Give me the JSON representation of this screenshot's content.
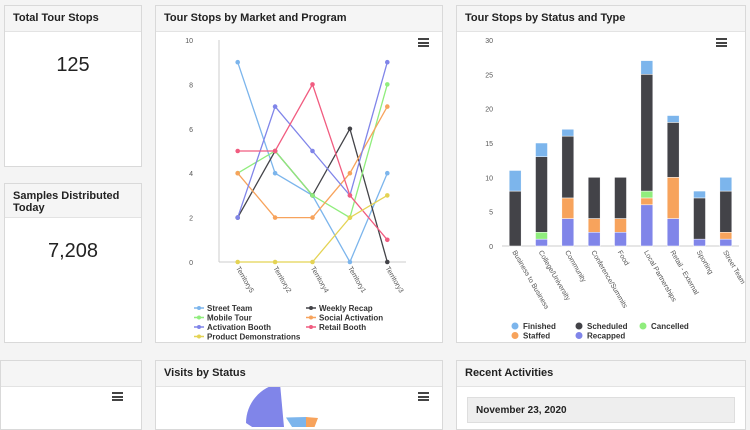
{
  "kpis": {
    "total_tour_stops": {
      "title": "Total Tour Stops",
      "value": "125"
    },
    "samples_distributed": {
      "title": "Samples Distributed Today",
      "value": "7,208"
    }
  },
  "cards": {
    "market_program_title": "Tour Stops by Market and Program",
    "status_type_title": "Tour Stops by Status and Type",
    "visits_status_title": "Visits by Status",
    "recent_activities_title": "Recent Activities"
  },
  "recent_activities": {
    "date_header": "November 23, 2020"
  },
  "icons": {
    "menu": "hamburger-menu-icon"
  },
  "chart_data": [
    {
      "type": "line",
      "title": "Tour Stops by Market and Program",
      "categories": [
        "Territory5",
        "Territory2",
        "Territory4",
        "Territory1",
        "Territory3"
      ],
      "ylim": [
        0,
        10
      ],
      "yticks": [
        0,
        2,
        4,
        6,
        8,
        10
      ],
      "series": [
        {
          "name": "Street Team",
          "color": "#7cb5ec",
          "values": [
            9,
            4,
            3,
            0,
            4
          ]
        },
        {
          "name": "Weekly Recap",
          "color": "#434348",
          "values": [
            2,
            5,
            3,
            6,
            0
          ]
        },
        {
          "name": "Mobile Tour",
          "color": "#90ed7d",
          "values": [
            4,
            5,
            3,
            2,
            8
          ]
        },
        {
          "name": "Social Activation",
          "color": "#f7a35c",
          "values": [
            4,
            2,
            2,
            4,
            7
          ]
        },
        {
          "name": "Activation Booth",
          "color": "#8085e9",
          "values": [
            2,
            7,
            5,
            3,
            9
          ]
        },
        {
          "name": "Retail Booth",
          "color": "#f15c80",
          "values": [
            5,
            5,
            8,
            3,
            1
          ]
        },
        {
          "name": "Product Demonstrations",
          "color": "#e4d354",
          "values": [
            0,
            0,
            0,
            2,
            3
          ]
        }
      ]
    },
    {
      "type": "bar",
      "stacked": true,
      "title": "Tour Stops by Status and Type",
      "categories": [
        "Business to Business",
        "College/University",
        "Community",
        "Conference/Summits",
        "Food",
        "Local Partnerships",
        "Retail - External",
        "Sporting",
        "Street Team"
      ],
      "ylim": [
        0,
        30
      ],
      "yticks": [
        0,
        5,
        10,
        15,
        20,
        25,
        30
      ],
      "series": [
        {
          "name": "Recapped",
          "color": "#8085e9",
          "values": [
            0,
            1,
            4,
            2,
            2,
            6,
            4,
            1,
            1
          ]
        },
        {
          "name": "Staffed",
          "color": "#f7a35c",
          "values": [
            0,
            0,
            3,
            2,
            2,
            1,
            6,
            0,
            1
          ]
        },
        {
          "name": "Cancelled",
          "color": "#90ed7d",
          "values": [
            0,
            1,
            0,
            0,
            0,
            1,
            0,
            0,
            0
          ]
        },
        {
          "name": "Scheduled",
          "color": "#434348",
          "values": [
            8,
            11,
            9,
            6,
            6,
            17,
            8,
            6,
            6
          ]
        },
        {
          "name": "Finished",
          "color": "#7cb5ec",
          "values": [
            3,
            2,
            1,
            0,
            0,
            2,
            1,
            1,
            2
          ]
        }
      ],
      "legend_order": [
        "Finished",
        "Scheduled",
        "Cancelled",
        "Staffed",
        "Recapped"
      ]
    }
  ]
}
